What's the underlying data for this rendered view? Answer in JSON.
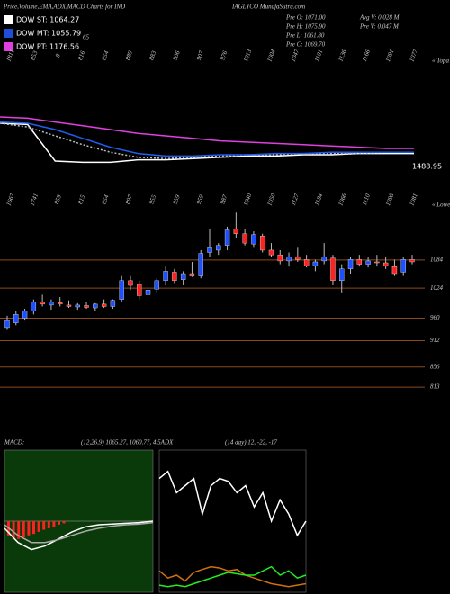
{
  "header": {
    "title": "Price,Volume,EMA,ADX,MACD Charts for IND",
    "site": "IAGLYCO MunafaSutra.com",
    "legend": [
      {
        "name": "DOW ST: 1064.27",
        "color": "#ffffff"
      },
      {
        "name": "DOW MT: 1055.79",
        "color": "#1f4fd8"
      },
      {
        "name": "DOW PT: 1176.56",
        "color": "#e040e0"
      }
    ],
    "stats": [
      "Pre  O: 1071.00",
      "Pre  H: 1075.90",
      "Pre  L: 1061.80",
      "Pre  C: 1069.70",
      "Avg  V: 0.028  M",
      "Pre  V: 0.047  M"
    ],
    "note": "65"
  },
  "chart_data": [
    {
      "type": "line",
      "top_labels": [
        "1811",
        "853",
        "8",
        "816",
        "854",
        "889",
        "883",
        "906",
        "907",
        "976",
        "1013",
        "1004",
        "1047",
        "1101",
        "1136",
        "1166",
        "1091",
        "1077"
      ],
      "right_label": "« Topa",
      "price_label": "1488.95",
      "ylim": [
        0,
        100
      ],
      "series": [
        {
          "name": "price",
          "color": "#ffffff",
          "values": [
            45,
            44,
            15,
            14,
            14,
            16,
            16,
            17,
            18,
            19,
            19,
            20,
            20,
            21,
            21,
            21
          ]
        },
        {
          "name": "ema-dotted",
          "color": "#bbbbbb",
          "dashed": true,
          "values": [
            45,
            42,
            35,
            28,
            22,
            18,
            17,
            18,
            19,
            20,
            20,
            21,
            21,
            21,
            22,
            22
          ]
        },
        {
          "name": "ema-mt",
          "color": "#1f5ef0",
          "values": [
            46,
            45,
            40,
            33,
            26,
            21,
            19,
            19,
            20,
            20,
            21,
            21,
            22,
            22,
            22,
            22
          ]
        },
        {
          "name": "ema-pt",
          "color": "#e040e0",
          "values": [
            50,
            49,
            46,
            43,
            40,
            37,
            35,
            33,
            31,
            30,
            29,
            28,
            27,
            26,
            25,
            25
          ]
        }
      ]
    },
    {
      "type": "candlestick",
      "top_labels": [
        "1667",
        "1741",
        "859",
        "815",
        "854",
        "897",
        "955",
        "959",
        "959",
        "987",
        "1040",
        "1050",
        "1127",
        "1184",
        "1066",
        "1110",
        "1098",
        "1081"
      ],
      "right_label": "« Lowe",
      "ylim": [
        794,
        1197
      ],
      "yticks": [
        1084,
        1024,
        960,
        912,
        856,
        813
      ],
      "up_color": "#1e50ff",
      "down_color": "#ff2020",
      "grid_color": "#8b4a1a",
      "candles": [
        {
          "o": 940,
          "h": 965,
          "l": 935,
          "c": 955
        },
        {
          "o": 950,
          "h": 975,
          "l": 945,
          "c": 968
        },
        {
          "o": 960,
          "h": 980,
          "l": 955,
          "c": 975
        },
        {
          "o": 975,
          "h": 1000,
          "l": 968,
          "c": 995
        },
        {
          "o": 995,
          "h": 1010,
          "l": 985,
          "c": 990
        },
        {
          "o": 988,
          "h": 1000,
          "l": 978,
          "c": 995
        },
        {
          "o": 993,
          "h": 1005,
          "l": 985,
          "c": 990
        },
        {
          "o": 988,
          "h": 998,
          "l": 982,
          "c": 985
        },
        {
          "o": 984,
          "h": 992,
          "l": 978,
          "c": 988
        },
        {
          "o": 987,
          "h": 995,
          "l": 980,
          "c": 983
        },
        {
          "o": 982,
          "h": 992,
          "l": 975,
          "c": 990
        },
        {
          "o": 990,
          "h": 1000,
          "l": 982,
          "c": 985
        },
        {
          "o": 985,
          "h": 1000,
          "l": 980,
          "c": 998
        },
        {
          "o": 1000,
          "h": 1050,
          "l": 995,
          "c": 1040
        },
        {
          "o": 1040,
          "h": 1050,
          "l": 1020,
          "c": 1030
        },
        {
          "o": 1032,
          "h": 1040,
          "l": 1000,
          "c": 1008
        },
        {
          "o": 1010,
          "h": 1025,
          "l": 1000,
          "c": 1020
        },
        {
          "o": 1022,
          "h": 1045,
          "l": 1015,
          "c": 1040
        },
        {
          "o": 1040,
          "h": 1070,
          "l": 1030,
          "c": 1060
        },
        {
          "o": 1058,
          "h": 1065,
          "l": 1035,
          "c": 1040
        },
        {
          "o": 1042,
          "h": 1060,
          "l": 1030,
          "c": 1055
        },
        {
          "o": 1055,
          "h": 1080,
          "l": 1048,
          "c": 1050
        },
        {
          "o": 1050,
          "h": 1105,
          "l": 1045,
          "c": 1098
        },
        {
          "o": 1100,
          "h": 1150,
          "l": 1090,
          "c": 1110
        },
        {
          "o": 1105,
          "h": 1120,
          "l": 1095,
          "c": 1115
        },
        {
          "o": 1115,
          "h": 1155,
          "l": 1105,
          "c": 1148
        },
        {
          "o": 1150,
          "h": 1185,
          "l": 1130,
          "c": 1140
        },
        {
          "o": 1140,
          "h": 1150,
          "l": 1115,
          "c": 1120
        },
        {
          "o": 1118,
          "h": 1145,
          "l": 1110,
          "c": 1138
        },
        {
          "o": 1135,
          "h": 1140,
          "l": 1100,
          "c": 1105
        },
        {
          "o": 1105,
          "h": 1120,
          "l": 1090,
          "c": 1095
        },
        {
          "o": 1095,
          "h": 1105,
          "l": 1075,
          "c": 1082
        },
        {
          "o": 1082,
          "h": 1100,
          "l": 1070,
          "c": 1090
        },
        {
          "o": 1090,
          "h": 1110,
          "l": 1080,
          "c": 1085
        },
        {
          "o": 1085,
          "h": 1095,
          "l": 1068,
          "c": 1072
        },
        {
          "o": 1072,
          "h": 1085,
          "l": 1060,
          "c": 1080
        },
        {
          "o": 1082,
          "h": 1120,
          "l": 1075,
          "c": 1090
        },
        {
          "o": 1088,
          "h": 1095,
          "l": 1030,
          "c": 1040
        },
        {
          "o": 1040,
          "h": 1075,
          "l": 1015,
          "c": 1065
        },
        {
          "o": 1065,
          "h": 1090,
          "l": 1055,
          "c": 1085
        },
        {
          "o": 1085,
          "h": 1095,
          "l": 1070,
          "c": 1075
        },
        {
          "o": 1075,
          "h": 1090,
          "l": 1068,
          "c": 1082
        },
        {
          "o": 1080,
          "h": 1095,
          "l": 1070,
          "c": 1078
        },
        {
          "o": 1078,
          "h": 1090,
          "l": 1065,
          "c": 1072
        },
        {
          "o": 1070,
          "h": 1085,
          "l": 1050,
          "c": 1055
        },
        {
          "o": 1058,
          "h": 1090,
          "l": 1050,
          "c": 1085
        },
        {
          "o": 1085,
          "h": 1095,
          "l": 1075,
          "c": 1080
        }
      ]
    },
    {
      "type": "macd",
      "label": "MACD:",
      "params": "(12,26,9) 1065.27, 1060.77, 4.5ADX",
      "background": "#0a3a0a",
      "ylim": [
        -10,
        10
      ],
      "histogram_color": "#ff2020",
      "histogram": [
        -2,
        -2.5,
        -2.5,
        -2.3,
        -2,
        -1.8,
        -1.5,
        -1.2,
        -1,
        -0.8,
        -0.5,
        -0.3
      ],
      "series": [
        {
          "name": "macd",
          "color": "#ffffff",
          "values": [
            -1,
            -3,
            -4,
            -3.5,
            -2.5,
            -1.5,
            -0.8,
            -0.5,
            -0.4,
            -0.3,
            -0.2,
            0
          ]
        },
        {
          "name": "signal",
          "color": "#aaaaaa",
          "values": [
            -0.5,
            -2,
            -3,
            -3,
            -2.6,
            -2,
            -1.4,
            -1,
            -0.7,
            -0.5,
            -0.4,
            -0.2
          ]
        }
      ]
    },
    {
      "type": "adx",
      "params": "(14 day) 12, -22, -17",
      "ylim": [
        0,
        100
      ],
      "series": [
        {
          "name": "adx",
          "color": "#ffffff",
          "values": [
            80,
            85,
            70,
            75,
            80,
            55,
            75,
            80,
            78,
            70,
            75,
            60,
            70,
            50,
            65,
            55,
            40,
            50
          ]
        },
        {
          "name": "plus-di",
          "color": "#d07010",
          "values": [
            15,
            10,
            12,
            8,
            14,
            16,
            18,
            17,
            15,
            16,
            12,
            10,
            8,
            6,
            5,
            4,
            5,
            6
          ]
        },
        {
          "name": "minus-di",
          "color": "#22ee22",
          "values": [
            5,
            4,
            5,
            4,
            6,
            8,
            10,
            12,
            14,
            13,
            12,
            12,
            15,
            18,
            12,
            15,
            10,
            12
          ]
        }
      ]
    }
  ]
}
